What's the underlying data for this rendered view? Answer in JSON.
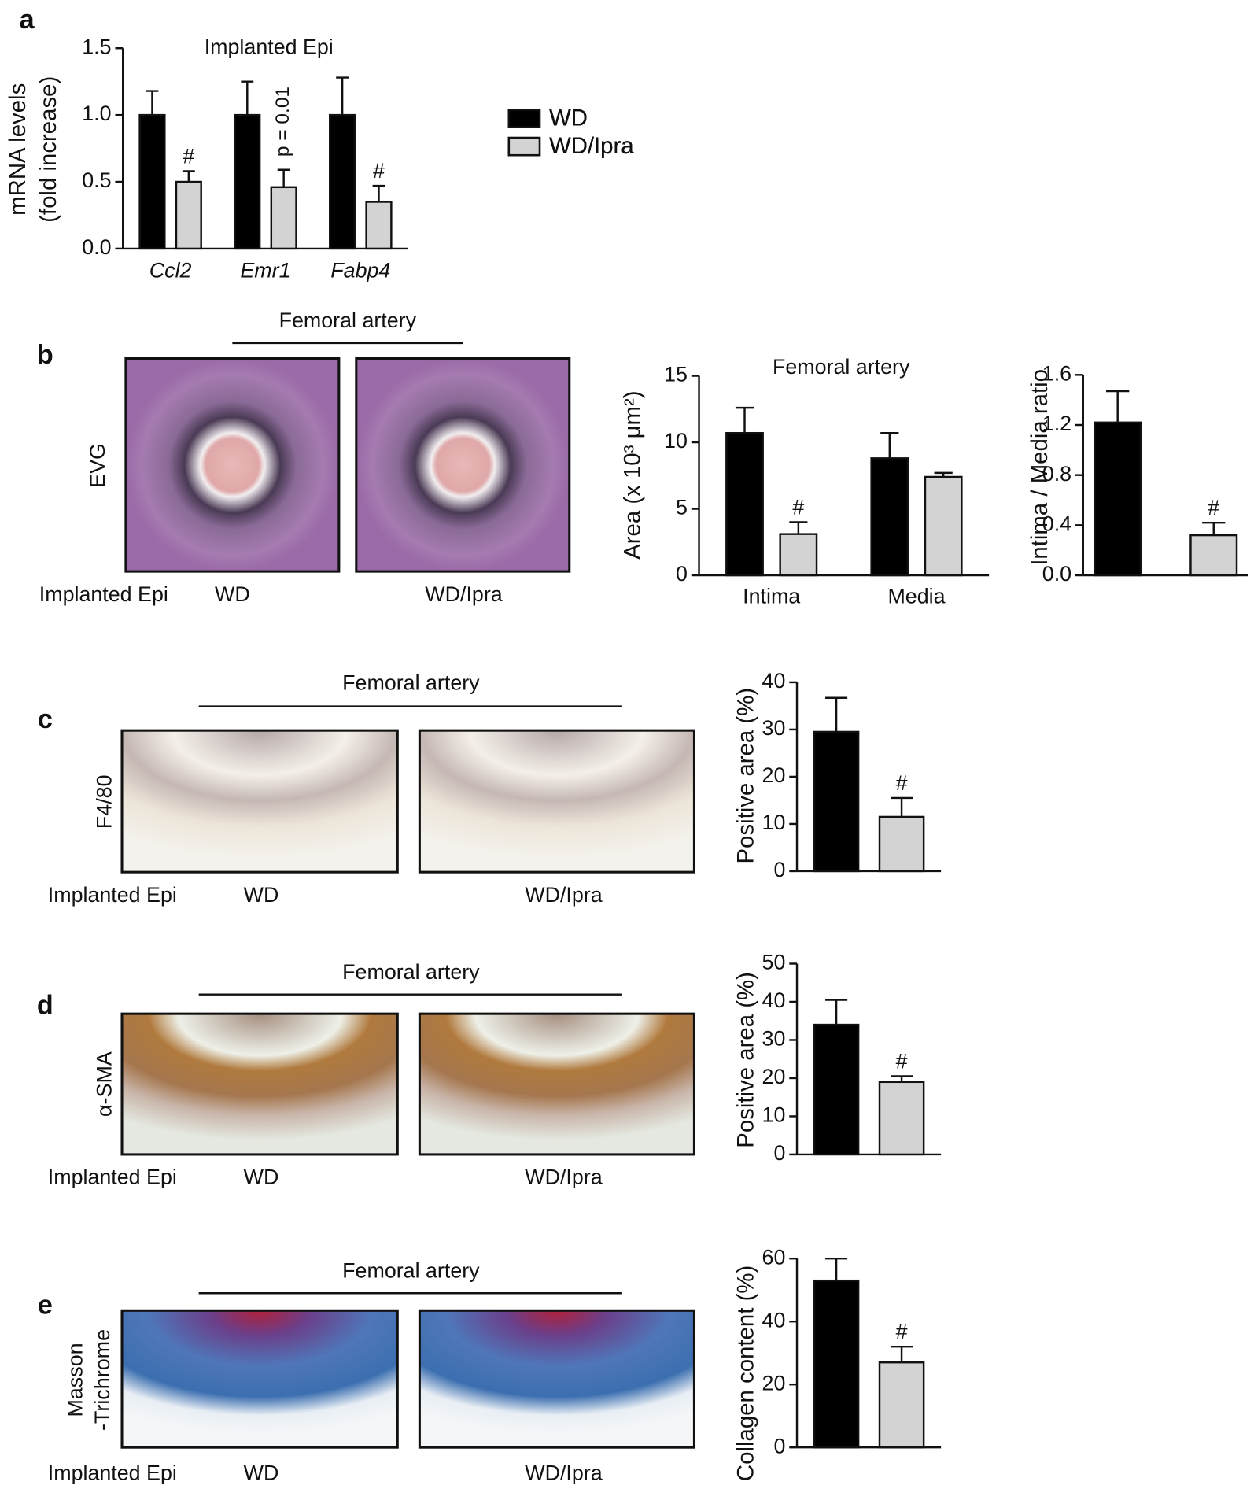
{
  "panels": [
    {
      "letter": "a"
    },
    {
      "letter": "b",
      "header": "Femoral artery",
      "stain": [
        "EVG"
      ],
      "row_label": "Implanted Epi",
      "image_labels": [
        "WD",
        "WD/Ipra"
      ]
    },
    {
      "letter": "c",
      "header": "Femoral artery",
      "stain": [
        "F4/80"
      ],
      "row_label": "Implanted Epi",
      "image_labels": [
        "WD",
        "WD/Ipra"
      ]
    },
    {
      "letter": "d",
      "header": "Femoral artery",
      "stain": [
        "α-SMA"
      ],
      "row_label": "Implanted Epi",
      "image_labels": [
        "WD",
        "WD/Ipra"
      ]
    },
    {
      "letter": "e",
      "header": "Femoral artery",
      "stain": [
        "Masson",
        "-Trichrome"
      ],
      "row_label": "Implanted Epi",
      "image_labels": [
        "WD",
        "WD/Ipra"
      ]
    }
  ],
  "chart_data": [
    {
      "type": "bar",
      "title": "Implanted Epi",
      "ylabel": [
        "mRNA levels",
        "(fold increase)"
      ],
      "categories": [
        "Ccl2",
        "Emr1",
        "Fabp4"
      ],
      "series": [
        {
          "name": "WD",
          "color": "#000000",
          "values": [
            1.0,
            1.0,
            1.0
          ],
          "errors": [
            0.18,
            0.25,
            0.28
          ],
          "marks": [
            null,
            null,
            null
          ]
        },
        {
          "name": "WD/Ipra",
          "color": "#d3d3d3",
          "values": [
            0.5,
            0.46,
            0.35
          ],
          "errors": [
            0.08,
            0.13,
            0.12
          ],
          "marks": [
            "#",
            "p = 0.01",
            "#"
          ]
        }
      ],
      "ylim": [
        0,
        1.5
      ],
      "yticks": [
        {
          "value": 0,
          "label": "0.0"
        },
        0.5,
        {
          "value": 1,
          "label": "1.0"
        },
        1.5
      ]
    },
    {
      "type": "bar",
      "title": "Femoral artery",
      "ylabel": [
        "Area (x 10³ μm²)"
      ],
      "categories": [
        "Intima",
        "Media"
      ],
      "series": [
        {
          "color": "#000000",
          "values": [
            10.7,
            8.8
          ],
          "errors": [
            1.9,
            1.9
          ],
          "marks": [
            null,
            null
          ]
        },
        {
          "color": "#d3d3d3",
          "values": [
            3.1,
            7.4
          ],
          "errors": [
            0.9,
            0.3
          ],
          "marks": [
            "#",
            null
          ]
        }
      ],
      "ylim": [
        0,
        15
      ],
      "yticks": [
        0,
        5,
        10,
        15
      ]
    },
    {
      "type": "bar",
      "ylabel": [
        "Intima / Media ratio"
      ],
      "categories": [
        null
      ],
      "series": [
        {
          "color": "#000000",
          "values": [
            1.22
          ],
          "errors": [
            0.25
          ],
          "marks": [
            null
          ]
        },
        {
          "color": "#d3d3d3",
          "values": [
            0.32
          ],
          "errors": [
            0.1
          ],
          "marks": [
            "#"
          ]
        }
      ],
      "ylim": [
        0,
        1.6
      ],
      "yticks": [
        {
          "value": 0,
          "label": "0.0"
        },
        0.4,
        0.8,
        1.2,
        1.6
      ]
    },
    {
      "type": "bar",
      "ylabel": [
        "Positive area (%)"
      ],
      "categories": [
        null
      ],
      "series": [
        {
          "color": "#000000",
          "values": [
            29.5
          ],
          "errors": [
            7.2
          ],
          "marks": [
            null
          ]
        },
        {
          "color": "#d3d3d3",
          "values": [
            11.5
          ],
          "errors": [
            4
          ],
          "marks": [
            "#"
          ]
        }
      ],
      "ylim": [
        0,
        40
      ],
      "yticks": [
        0,
        10,
        20,
        30,
        40
      ]
    },
    {
      "type": "bar",
      "ylabel": [
        "Positive area (%)"
      ],
      "categories": [
        null
      ],
      "series": [
        {
          "color": "#000000",
          "values": [
            34
          ],
          "errors": [
            6.5
          ],
          "marks": [
            null
          ]
        },
        {
          "color": "#d3d3d3",
          "values": [
            19
          ],
          "errors": [
            1.5
          ],
          "marks": [
            "#"
          ]
        }
      ],
      "ylim": [
        0,
        50
      ],
      "yticks": [
        0,
        10,
        20,
        30,
        40,
        50
      ]
    },
    {
      "type": "bar",
      "ylabel": [
        "Collagen content (%)"
      ],
      "categories": [
        null
      ],
      "series": [
        {
          "color": "#000000",
          "values": [
            53
          ],
          "errors": [
            7
          ],
          "marks": [
            null
          ]
        },
        {
          "color": "#d3d3d3",
          "values": [
            27
          ],
          "errors": [
            5
          ],
          "marks": [
            "#"
          ]
        }
      ],
      "ylim": [
        0,
        60
      ],
      "yticks": [
        0,
        20,
        40,
        60
      ]
    }
  ]
}
